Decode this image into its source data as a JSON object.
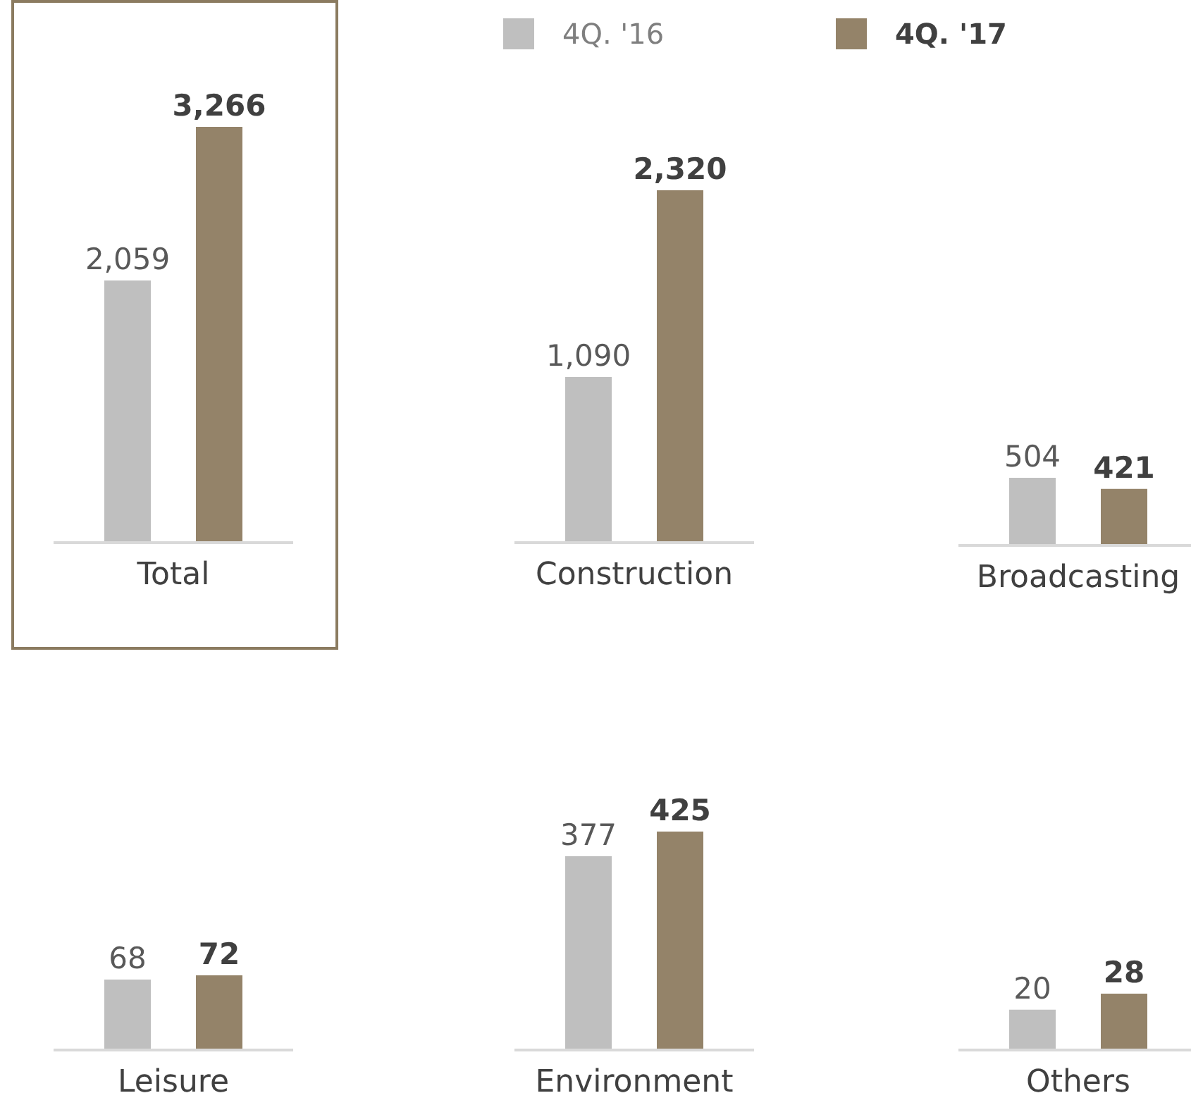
{
  "chart_data": [
    {
      "type": "bar",
      "categories": [
        "Total"
      ],
      "series": [
        {
          "color": "#bfbfbf",
          "values": [
            2059
          ],
          "value_labels": [
            "2,059"
          ]
        },
        {
          "color": "#948369",
          "values": [
            3266
          ],
          "value_labels": [
            "3,266"
          ]
        }
      ]
    },
    {
      "type": "bar",
      "categories": [
        "Construction"
      ],
      "series": [
        {
          "name": "4Q. '16",
          "color": "#bfbfbf",
          "values": [
            1090
          ],
          "value_labels": [
            "1,090"
          ]
        },
        {
          "name": "4Q. '17",
          "color": "#948369",
          "values": [
            2320
          ],
          "value_labels": [
            "2,320"
          ]
        }
      ],
      "legend": "top"
    },
    {
      "type": "bar",
      "categories": [
        "Broadcasting"
      ],
      "series": [
        {
          "color": "#bfbfbf",
          "values": [
            504
          ]
        },
        {
          "color": "#948369",
          "values": [
            421
          ]
        }
      ],
      "data_labels": true
    },
    {
      "type": "bar",
      "categories": [
        "Leisure"
      ],
      "series": [
        {
          "color": "#bfbfbf",
          "values": [
            68
          ]
        },
        {
          "color": "#948369",
          "values": [
            72
          ]
        }
      ],
      "data_labels": true
    },
    {
      "type": "bar",
      "categories": [
        "Environment"
      ],
      "series": [
        {
          "color": "#bfbfbf",
          "values": [
            377
          ]
        },
        {
          "color": "#948369",
          "values": [
            425
          ]
        }
      ],
      "data_labels": true
    },
    {
      "type": "bar",
      "categories": [
        "Others"
      ],
      "series": [
        {
          "color": "#bfbfbf",
          "values": [
            20
          ]
        },
        {
          "color": "#948369",
          "values": [
            28
          ]
        }
      ],
      "data_labels": true
    }
  ]
}
